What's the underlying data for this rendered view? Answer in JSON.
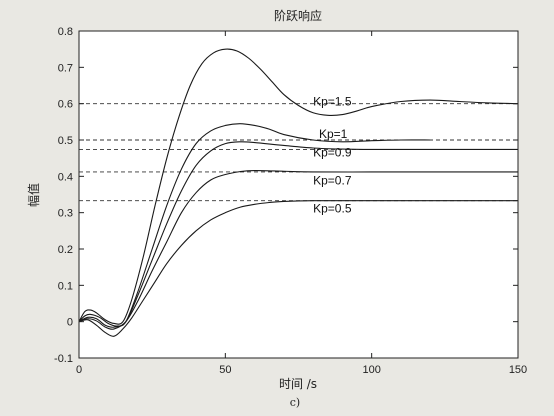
{
  "chart_data": {
    "type": "line",
    "title": "阶跃响应",
    "xlabel": "时间 /s",
    "ylabel": "幅值",
    "caption": "c)",
    "xlim": [
      0,
      150
    ],
    "ylim": [
      -0.1,
      0.8
    ],
    "xticks": [
      0,
      50,
      100,
      150
    ],
    "yticks": [
      -0.1,
      0,
      0.1,
      0.2,
      0.3,
      0.4,
      0.5,
      0.6,
      0.7,
      0.8
    ],
    "grid": false,
    "colors": {
      "series": "#1a1a1a",
      "reference": "#333333",
      "plot_background": "#ffffff",
      "frame": "#222222"
    },
    "series": [
      {
        "name": "Kp=1.5",
        "steady": 0.6,
        "points": [
          [
            0,
            0
          ],
          [
            2,
            0.028
          ],
          [
            4,
            0.032
          ],
          [
            6,
            0.024
          ],
          [
            9,
            0.005
          ],
          [
            12,
            -0.005
          ],
          [
            15,
            0
          ],
          [
            18,
            0.06
          ],
          [
            22,
            0.18
          ],
          [
            26,
            0.32
          ],
          [
            30,
            0.45
          ],
          [
            34,
            0.56
          ],
          [
            38,
            0.65
          ],
          [
            42,
            0.71
          ],
          [
            46,
            0.74
          ],
          [
            50,
            0.75
          ],
          [
            54,
            0.745
          ],
          [
            58,
            0.725
          ],
          [
            62,
            0.695
          ],
          [
            66,
            0.66
          ],
          [
            70,
            0.625
          ],
          [
            75,
            0.595
          ],
          [
            80,
            0.575
          ],
          [
            85,
            0.568
          ],
          [
            90,
            0.57
          ],
          [
            95,
            0.58
          ],
          [
            100,
            0.592
          ],
          [
            110,
            0.606
          ],
          [
            120,
            0.61
          ],
          [
            130,
            0.606
          ],
          [
            140,
            0.602
          ],
          [
            150,
            0.6
          ]
        ]
      },
      {
        "name": "Kp=1",
        "steady": 0.5,
        "points": [
          [
            0,
            0
          ],
          [
            2,
            0.016
          ],
          [
            4,
            0.02
          ],
          [
            7,
            0.012
          ],
          [
            10,
            -0.005
          ],
          [
            13,
            -0.012
          ],
          [
            16,
            0
          ],
          [
            20,
            0.08
          ],
          [
            25,
            0.2
          ],
          [
            30,
            0.32
          ],
          [
            35,
            0.42
          ],
          [
            40,
            0.49
          ],
          [
            45,
            0.525
          ],
          [
            50,
            0.54
          ],
          [
            55,
            0.545
          ],
          [
            60,
            0.54
          ],
          [
            65,
            0.53
          ],
          [
            70,
            0.515
          ],
          [
            80,
            0.5
          ],
          [
            90,
            0.495
          ],
          [
            100,
            0.498
          ],
          [
            110,
            0.5
          ],
          [
            120,
            0.5
          ]
        ]
      },
      {
        "name": "Kp=0.9",
        "steady": 0.474,
        "points": [
          [
            0,
            0
          ],
          [
            3,
            0.012
          ],
          [
            6,
            0.008
          ],
          [
            9,
            -0.01
          ],
          [
            12,
            -0.015
          ],
          [
            16,
            0
          ],
          [
            20,
            0.07
          ],
          [
            25,
            0.17
          ],
          [
            30,
            0.27
          ],
          [
            35,
            0.36
          ],
          [
            40,
            0.43
          ],
          [
            45,
            0.47
          ],
          [
            50,
            0.49
          ],
          [
            55,
            0.495
          ],
          [
            60,
            0.493
          ],
          [
            70,
            0.485
          ],
          [
            80,
            0.478
          ],
          [
            90,
            0.475
          ],
          [
            100,
            0.474
          ],
          [
            120,
            0.474
          ],
          [
            150,
            0.474
          ]
        ]
      },
      {
        "name": "Kp=0.7",
        "steady": 0.412,
        "points": [
          [
            0,
            0
          ],
          [
            3,
            0.008
          ],
          [
            6,
            0.002
          ],
          [
            9,
            -0.015
          ],
          [
            12,
            -0.02
          ],
          [
            16,
            0
          ],
          [
            20,
            0.055
          ],
          [
            25,
            0.14
          ],
          [
            30,
            0.22
          ],
          [
            35,
            0.3
          ],
          [
            40,
            0.355
          ],
          [
            45,
            0.39
          ],
          [
            50,
            0.405
          ],
          [
            55,
            0.413
          ],
          [
            60,
            0.416
          ],
          [
            70,
            0.414
          ],
          [
            80,
            0.412
          ],
          [
            100,
            0.412
          ],
          [
            120,
            0.412
          ],
          [
            150,
            0.412
          ]
        ]
      },
      {
        "name": "Kp=0.5",
        "steady": 0.333,
        "points": [
          [
            0,
            0
          ],
          [
            3,
            0.005
          ],
          [
            6,
            -0.01
          ],
          [
            9,
            -0.03
          ],
          [
            12,
            -0.04
          ],
          [
            15,
            -0.02
          ],
          [
            18,
            0.01
          ],
          [
            22,
            0.06
          ],
          [
            26,
            0.11
          ],
          [
            30,
            0.16
          ],
          [
            35,
            0.21
          ],
          [
            40,
            0.25
          ],
          [
            45,
            0.28
          ],
          [
            50,
            0.3
          ],
          [
            55,
            0.315
          ],
          [
            60,
            0.323
          ],
          [
            65,
            0.328
          ],
          [
            70,
            0.331
          ],
          [
            80,
            0.333
          ],
          [
            100,
            0.333
          ],
          [
            150,
            0.333
          ]
        ]
      }
    ],
    "reference_lines": [
      {
        "y": 0.6,
        "style": "dashed"
      },
      {
        "y": 0.5,
        "style": "dashed"
      },
      {
        "y": 0.474,
        "style": "dashed"
      },
      {
        "y": 0.412,
        "style": "dashed"
      },
      {
        "y": 0.333,
        "style": "dashed"
      }
    ],
    "annotations": [
      {
        "text": "Kp=1.5",
        "x": 80,
        "y": 0.595
      },
      {
        "text": "Kp=1",
        "x": 82,
        "y": 0.505
      },
      {
        "text": "Kp=0.9",
        "x": 80,
        "y": 0.455
      },
      {
        "text": "Kp=0.7",
        "x": 80,
        "y": 0.378
      },
      {
        "text": "Kp=0.5",
        "x": 80,
        "y": 0.3
      }
    ]
  }
}
